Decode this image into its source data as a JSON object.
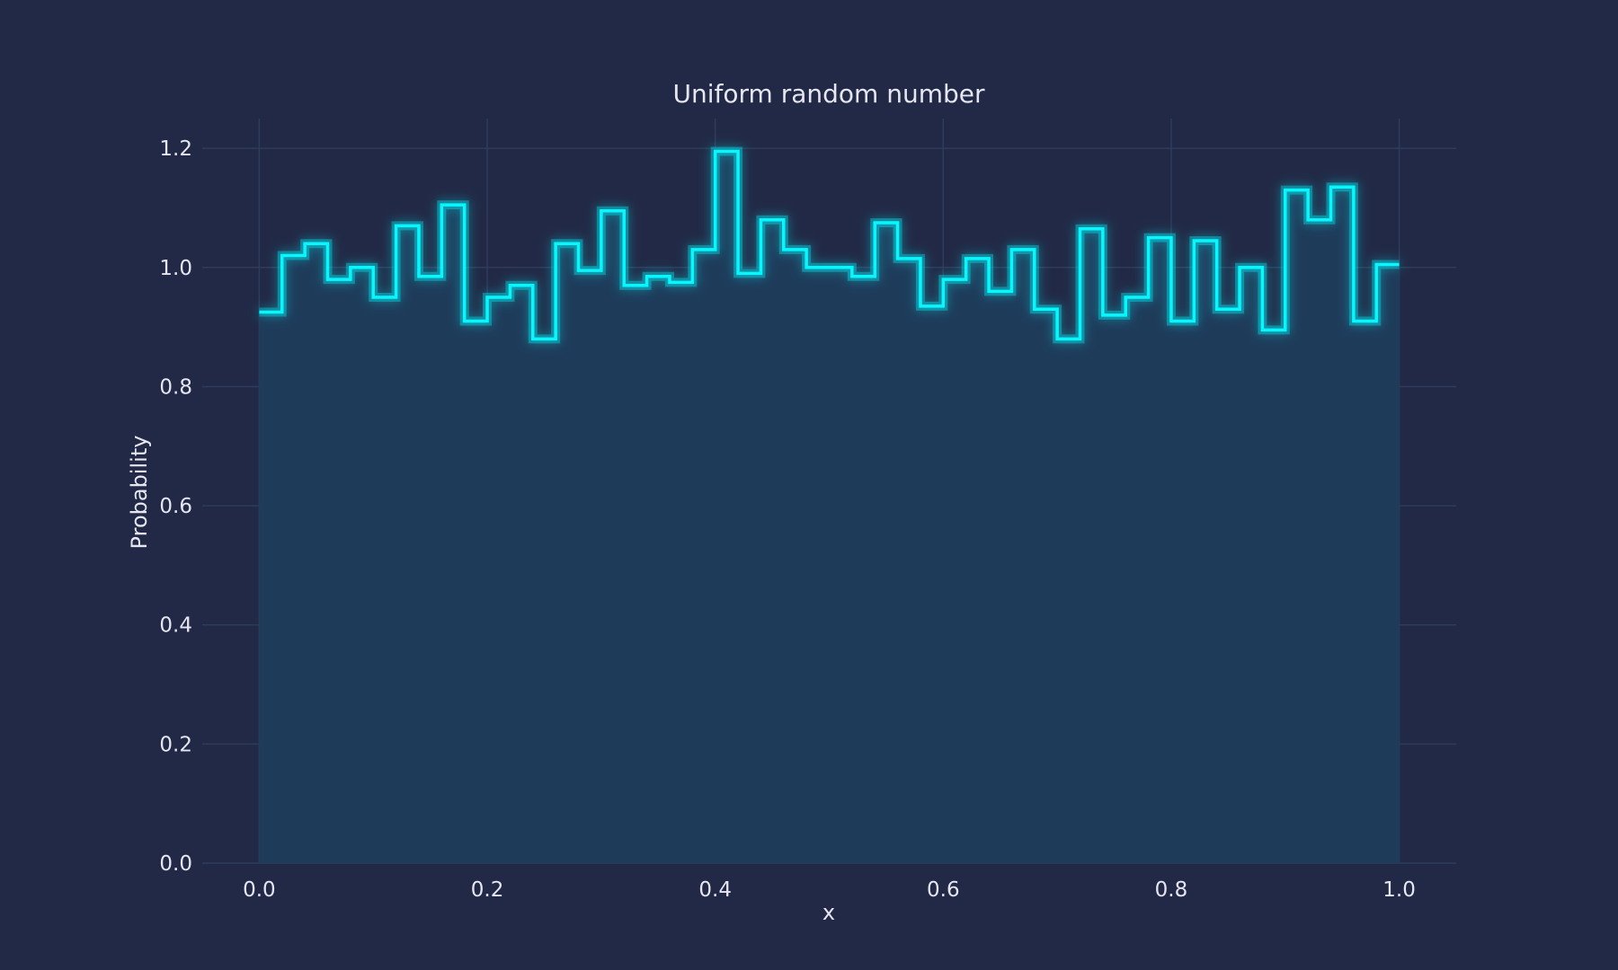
{
  "chart_data": {
    "type": "histogram",
    "title": "Uniform random number",
    "xlabel": "x",
    "ylabel": "Probability",
    "xlim": [
      -0.05,
      1.05
    ],
    "ylim": [
      0,
      1.25
    ],
    "xticks": [
      "0.0",
      "0.2",
      "0.4",
      "0.6",
      "0.8",
      "1.0"
    ],
    "yticks": [
      "0.0",
      "0.2",
      "0.4",
      "0.6",
      "0.8",
      "1.0",
      "1.2"
    ],
    "grid": true,
    "bin_edges": [
      0.0,
      0.02,
      0.04,
      0.06,
      0.08,
      0.1,
      0.12,
      0.14,
      0.16,
      0.18,
      0.2,
      0.22,
      0.24,
      0.26,
      0.28,
      0.3,
      0.32,
      0.34,
      0.36,
      0.38,
      0.4,
      0.42,
      0.44,
      0.46,
      0.48,
      0.5,
      0.52,
      0.54,
      0.56,
      0.58,
      0.6,
      0.62,
      0.64,
      0.66,
      0.68,
      0.7,
      0.72,
      0.74,
      0.76,
      0.78,
      0.8,
      0.82,
      0.84,
      0.86,
      0.88,
      0.9,
      0.92,
      0.94,
      0.96,
      0.98,
      1.0
    ],
    "values": [
      0.925,
      1.02,
      1.04,
      0.98,
      1.0,
      0.95,
      1.07,
      0.985,
      1.105,
      0.91,
      0.95,
      0.97,
      0.88,
      1.04,
      0.995,
      1.095,
      0.97,
      0.985,
      0.975,
      1.03,
      1.195,
      0.99,
      1.08,
      1.03,
      1.0,
      1.0,
      0.985,
      1.075,
      1.015,
      0.935,
      0.98,
      1.015,
      0.96,
      1.03,
      0.93,
      0.88,
      1.065,
      0.92,
      0.95,
      1.05,
      0.91,
      1.045,
      0.93,
      1.0,
      0.895,
      1.13,
      1.08,
      1.135,
      0.91,
      1.005
    ],
    "colors": {
      "background": "#212946",
      "line": "#08F7FE",
      "fill": "#1e3b5a",
      "grid": "#2d3c5c",
      "text": "#e6e6f0"
    }
  }
}
